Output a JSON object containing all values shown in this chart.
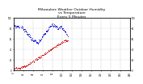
{
  "title": "Milwaukee Weather Outdoor Humidity\nvs Temperature\nEvery 5 Minutes",
  "title_fontsize": 3.2,
  "background_color": "#ffffff",
  "plot_bg_color": "#ffffff",
  "grid_color": "#999999",
  "blue_color": "#0000cc",
  "red_color": "#cc0000",
  "ylim": [
    0,
    100
  ],
  "xlim": [
    0,
    288
  ],
  "tick_fontsize": 1.8,
  "blue_y": [
    88,
    87,
    86,
    85,
    84,
    85,
    86,
    85,
    84,
    83,
    84,
    85,
    84,
    83,
    82,
    88,
    87,
    86,
    85,
    84,
    83,
    82,
    81,
    80,
    79,
    80,
    79,
    78,
    77,
    76,
    75,
    74,
    73,
    72,
    71,
    70,
    69,
    68,
    67,
    66,
    65,
    64,
    63,
    62,
    61,
    60,
    59,
    58,
    57,
    56,
    55,
    56,
    57,
    58,
    57,
    56,
    55,
    54,
    53,
    52,
    53,
    54,
    55,
    56,
    57,
    58,
    59,
    60,
    61,
    62,
    63,
    64,
    65,
    66,
    67,
    68,
    69,
    70,
    71,
    72,
    73,
    74,
    75,
    76,
    77,
    78,
    79,
    80,
    81,
    82,
    83,
    84,
    85,
    86,
    87,
    88,
    87,
    86,
    85,
    86,
    87,
    88,
    87,
    86,
    85,
    84,
    83,
    82,
    81,
    80,
    79,
    80,
    81,
    82,
    83,
    84,
    85,
    84,
    83,
    82,
    81,
    80,
    79,
    78,
    77,
    76,
    75,
    74,
    73,
    72,
    71,
    70,
    69,
    68,
    67
  ],
  "red_y": [
    5,
    5,
    5,
    5,
    5,
    5,
    5,
    5,
    5,
    5,
    5,
    5,
    5,
    5,
    5,
    5,
    5,
    5,
    5,
    5,
    6,
    6,
    6,
    6,
    7,
    7,
    7,
    7,
    8,
    8,
    8,
    9,
    9,
    10,
    10,
    11,
    11,
    12,
    12,
    13,
    13,
    14,
    14,
    15,
    15,
    16,
    16,
    17,
    17,
    18,
    18,
    19,
    19,
    20,
    20,
    21,
    21,
    22,
    22,
    23,
    23,
    24,
    24,
    25,
    25,
    26,
    26,
    27,
    27,
    28,
    28,
    29,
    29,
    30,
    30,
    31,
    31,
    32,
    32,
    33,
    33,
    34,
    34,
    35,
    35,
    36,
    36,
    37,
    37,
    38,
    38,
    39,
    40,
    40,
    41,
    41,
    42,
    42,
    43,
    43,
    44,
    44,
    45,
    45,
    46,
    46,
    47,
    47,
    48,
    48,
    49,
    49,
    50,
    50,
    51,
    51,
    52,
    52,
    53,
    53,
    54,
    54,
    55,
    55,
    56,
    56,
    57,
    57,
    57,
    57,
    57,
    57,
    57,
    57,
    57
  ],
  "yticks": [
    0,
    20,
    40,
    60,
    80,
    100
  ],
  "xtick_step": 24,
  "num_points": 135
}
